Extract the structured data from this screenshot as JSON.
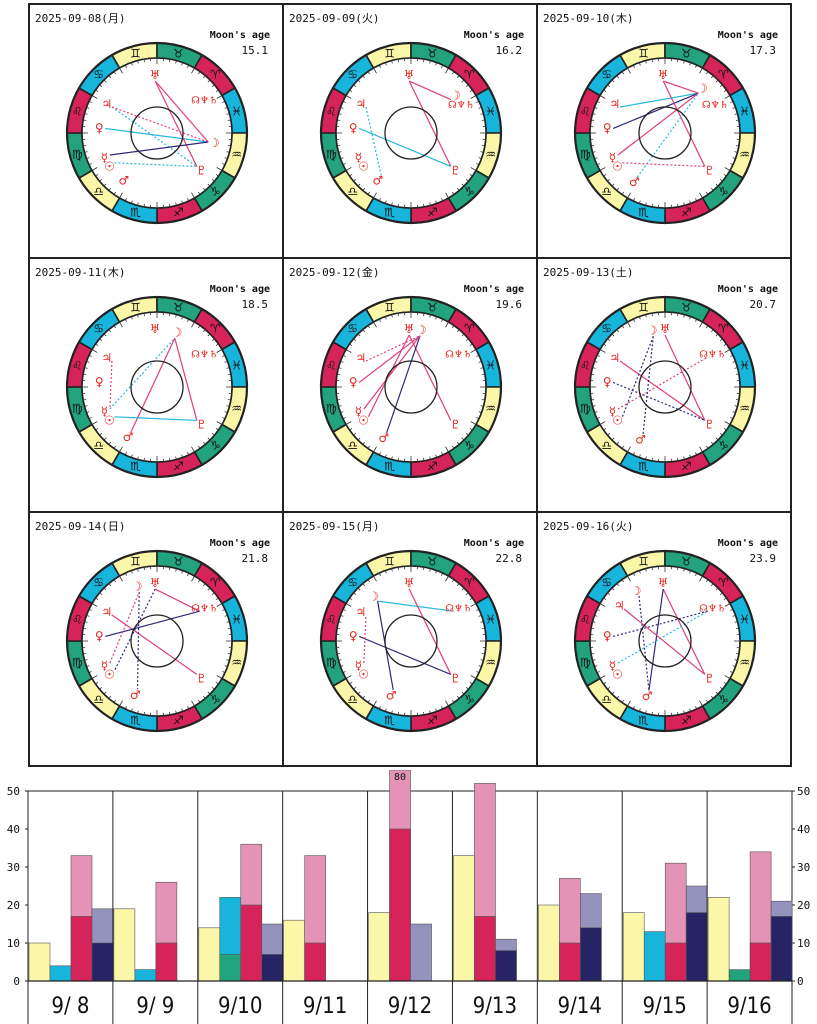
{
  "colors": {
    "pink": "#e493b6",
    "crimson": "#d6245a",
    "yellow": "#fbf7a8",
    "cyan": "#17b4dc",
    "teal": "#22a37d",
    "lavender": "#9493bd",
    "navy": "#262465",
    "glyph_red": "#e8211a",
    "aspect_pink": "#df3f7a",
    "aspect_cyan": "#23b9d9",
    "aspect_navy": "#2e2a7a"
  },
  "charts": [
    {
      "date": "2025-09-08(月)",
      "moon_label": "Moon's age",
      "moon_age": "15.1"
    },
    {
      "date": "2025-09-09(火)",
      "moon_label": "Moon's age",
      "moon_age": "16.2"
    },
    {
      "date": "2025-09-10(木)",
      "moon_label": "Moon's age",
      "moon_age": "17.3"
    },
    {
      "date": "2025-09-11(木)",
      "moon_label": "Moon's age",
      "moon_age": "18.5"
    },
    {
      "date": "2025-09-12(金)",
      "moon_label": "Moon's age",
      "moon_age": "19.6"
    },
    {
      "date": "2025-09-13(土)",
      "moon_label": "Moon's age",
      "moon_age": "20.7"
    },
    {
      "date": "2025-09-14(日)",
      "moon_label": "Moon's age",
      "moon_age": "21.8"
    },
    {
      "date": "2025-09-15(月)",
      "moon_label": "Moon's age",
      "moon_age": "22.8"
    },
    {
      "date": "2025-09-16(火)",
      "moon_label": "Moon's age",
      "moon_age": "23.9"
    }
  ],
  "zodiac_ring": [
    {
      "glyph": "♊",
      "color": "yellow"
    },
    {
      "glyph": "♉",
      "color": "teal"
    },
    {
      "glyph": "♈",
      "color": "crimson"
    },
    {
      "glyph": "♓",
      "color": "cyan"
    },
    {
      "glyph": "♒",
      "color": "yellow"
    },
    {
      "glyph": "♑",
      "color": "teal"
    },
    {
      "glyph": "♐",
      "color": "crimson"
    },
    {
      "glyph": "♏",
      "color": "cyan"
    },
    {
      "glyph": "♎",
      "color": "yellow"
    },
    {
      "glyph": "♍",
      "color": "teal"
    },
    {
      "glyph": "♌",
      "color": "crimson"
    },
    {
      "glyph": "♋",
      "color": "cyan"
    }
  ],
  "planets": {
    "uranus": "♅",
    "moon": "☽",
    "node_neptune_saturn": "☊♆♄",
    "jupiter": "♃",
    "venus": "♀",
    "mercury": "☿",
    "sun": "☉",
    "mars": "♂",
    "pluto": "♇"
  },
  "chart_data": {
    "type": "bar",
    "ylim": [
      0,
      50
    ],
    "yticks": [
      0,
      10,
      20,
      30,
      40,
      50
    ],
    "categories": [
      "9/ 8",
      "9/ 9",
      "9/10",
      "9/11",
      "9/12",
      "9/13",
      "9/14",
      "9/15",
      "9/16"
    ],
    "groups": [
      {
        "bars": [
          {
            "v": 10,
            "c": "yellow"
          },
          {
            "v": 4,
            "c": "cyan"
          },
          {
            "v": 33,
            "inner": 17,
            "c": "pink",
            "ic": "crimson"
          },
          {
            "v": 19,
            "inner": 10,
            "c": "lavender",
            "ic": "navy"
          }
        ]
      },
      {
        "bars": [
          {
            "v": 19,
            "c": "yellow"
          },
          {
            "v": 3,
            "c": "cyan"
          },
          {
            "v": 26,
            "inner": 10,
            "c": "pink",
            "ic": "crimson"
          }
        ]
      },
      {
        "bars": [
          {
            "v": 14,
            "c": "yellow"
          },
          {
            "v": 22,
            "inner": 7,
            "c": "cyan",
            "ic": "teal"
          },
          {
            "v": 36,
            "inner": 20,
            "c": "pink",
            "ic": "crimson"
          },
          {
            "v": 15,
            "inner": 7,
            "c": "lavender",
            "ic": "navy"
          }
        ]
      },
      {
        "bars": [
          {
            "v": 16,
            "c": "yellow"
          },
          {
            "v": 33,
            "inner": 10,
            "c": "pink",
            "ic": "crimson"
          }
        ]
      },
      {
        "bars": [
          {
            "v": 18,
            "c": "yellow"
          },
          {
            "v": 80,
            "inner": 40,
            "c": "pink",
            "ic": "crimson",
            "label": "80"
          },
          {
            "v": 15,
            "c": "lavender"
          }
        ]
      },
      {
        "bars": [
          {
            "v": 33,
            "c": "yellow"
          },
          {
            "v": 52,
            "inner": 17,
            "c": "pink",
            "ic": "crimson"
          },
          {
            "v": 11,
            "inner": 8,
            "c": "lavender",
            "ic": "navy"
          }
        ]
      },
      {
        "bars": [
          {
            "v": 20,
            "c": "yellow"
          },
          {
            "v": 27,
            "inner": 10,
            "c": "pink",
            "ic": "crimson"
          },
          {
            "v": 23,
            "inner": 14,
            "c": "lavender",
            "ic": "navy"
          }
        ]
      },
      {
        "bars": [
          {
            "v": 18,
            "c": "yellow"
          },
          {
            "v": 13,
            "c": "cyan"
          },
          {
            "v": 31,
            "inner": 10,
            "c": "pink",
            "ic": "crimson"
          },
          {
            "v": 25,
            "inner": 18,
            "c": "lavender",
            "ic": "navy"
          }
        ]
      },
      {
        "bars": [
          {
            "v": 22,
            "c": "yellow"
          },
          {
            "v": 3,
            "c": "teal"
          },
          {
            "v": 34,
            "inner": 10,
            "c": "pink",
            "ic": "crimson"
          },
          {
            "v": 21,
            "inner": 17,
            "c": "lavender",
            "ic": "navy"
          }
        ]
      }
    ]
  }
}
